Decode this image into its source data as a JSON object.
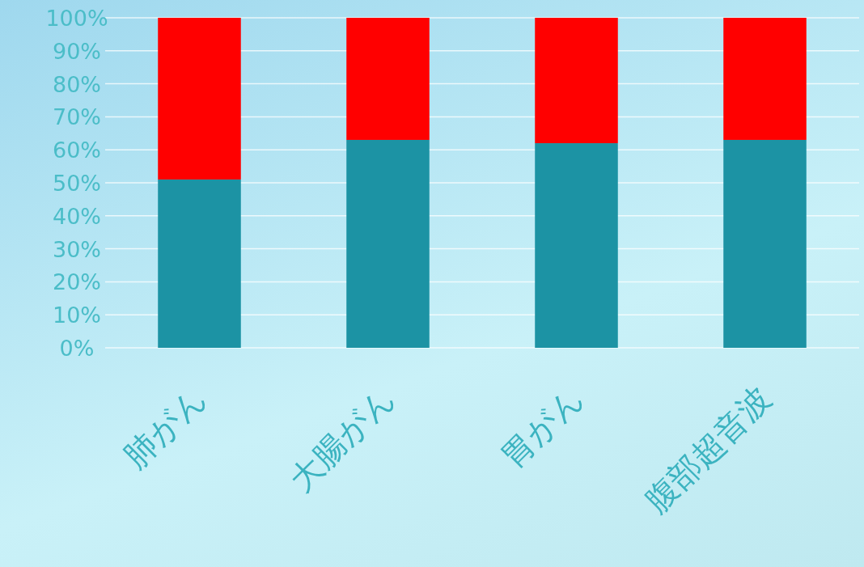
{
  "chart_data": {
    "type": "bar",
    "stacked": true,
    "grid": "y",
    "categories": [
      "肺がん",
      "大腸がん",
      "胃がん",
      "腹部超音波"
    ],
    "series": [
      {
        "color": "#1c93a4",
        "values": [
          51,
          63,
          62,
          63
        ]
      },
      {
        "color": "#ff0000",
        "values": [
          49,
          37,
          38,
          37
        ]
      }
    ],
    "ylim": [
      0,
      100
    ],
    "yticks": [
      {
        "value": 0,
        "label": "0%"
      },
      {
        "value": 10,
        "label": "10%"
      },
      {
        "value": 20,
        "label": "20%"
      },
      {
        "value": 30,
        "label": "30%"
      },
      {
        "value": 40,
        "label": "40%"
      },
      {
        "value": 50,
        "label": "50%"
      },
      {
        "value": 60,
        "label": "60%"
      },
      {
        "value": 70,
        "label": "70%"
      },
      {
        "value": 80,
        "label": "80%"
      },
      {
        "value": 90,
        "label": "90%"
      },
      {
        "value": 100,
        "label": "100%"
      }
    ]
  }
}
